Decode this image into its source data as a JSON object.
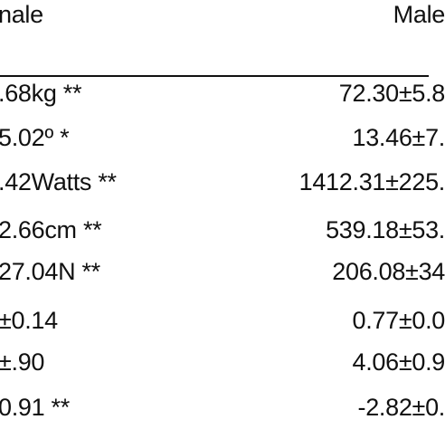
{
  "table": {
    "header": {
      "left": "nale",
      "right": "Male"
    },
    "rows": [
      {
        "left": ".68kg **",
        "right": "72.30±5.8"
      },
      {
        "left": "5.02º *",
        "right": "13.46±7."
      },
      {
        "left": ".42Watts **",
        "right": "1412.31±225."
      },
      {
        "left": "2.66cm **",
        "right": "539.18±53."
      },
      {
        "left": "27.04N **",
        "right": "206.08±34"
      },
      {
        "left": "±0.14",
        "right": "0.77±0.0"
      },
      {
        "left": "±.90",
        "right": "4.06±0.9"
      },
      {
        "left": "0.91 **",
        "right": "-2.82±0."
      }
    ]
  }
}
